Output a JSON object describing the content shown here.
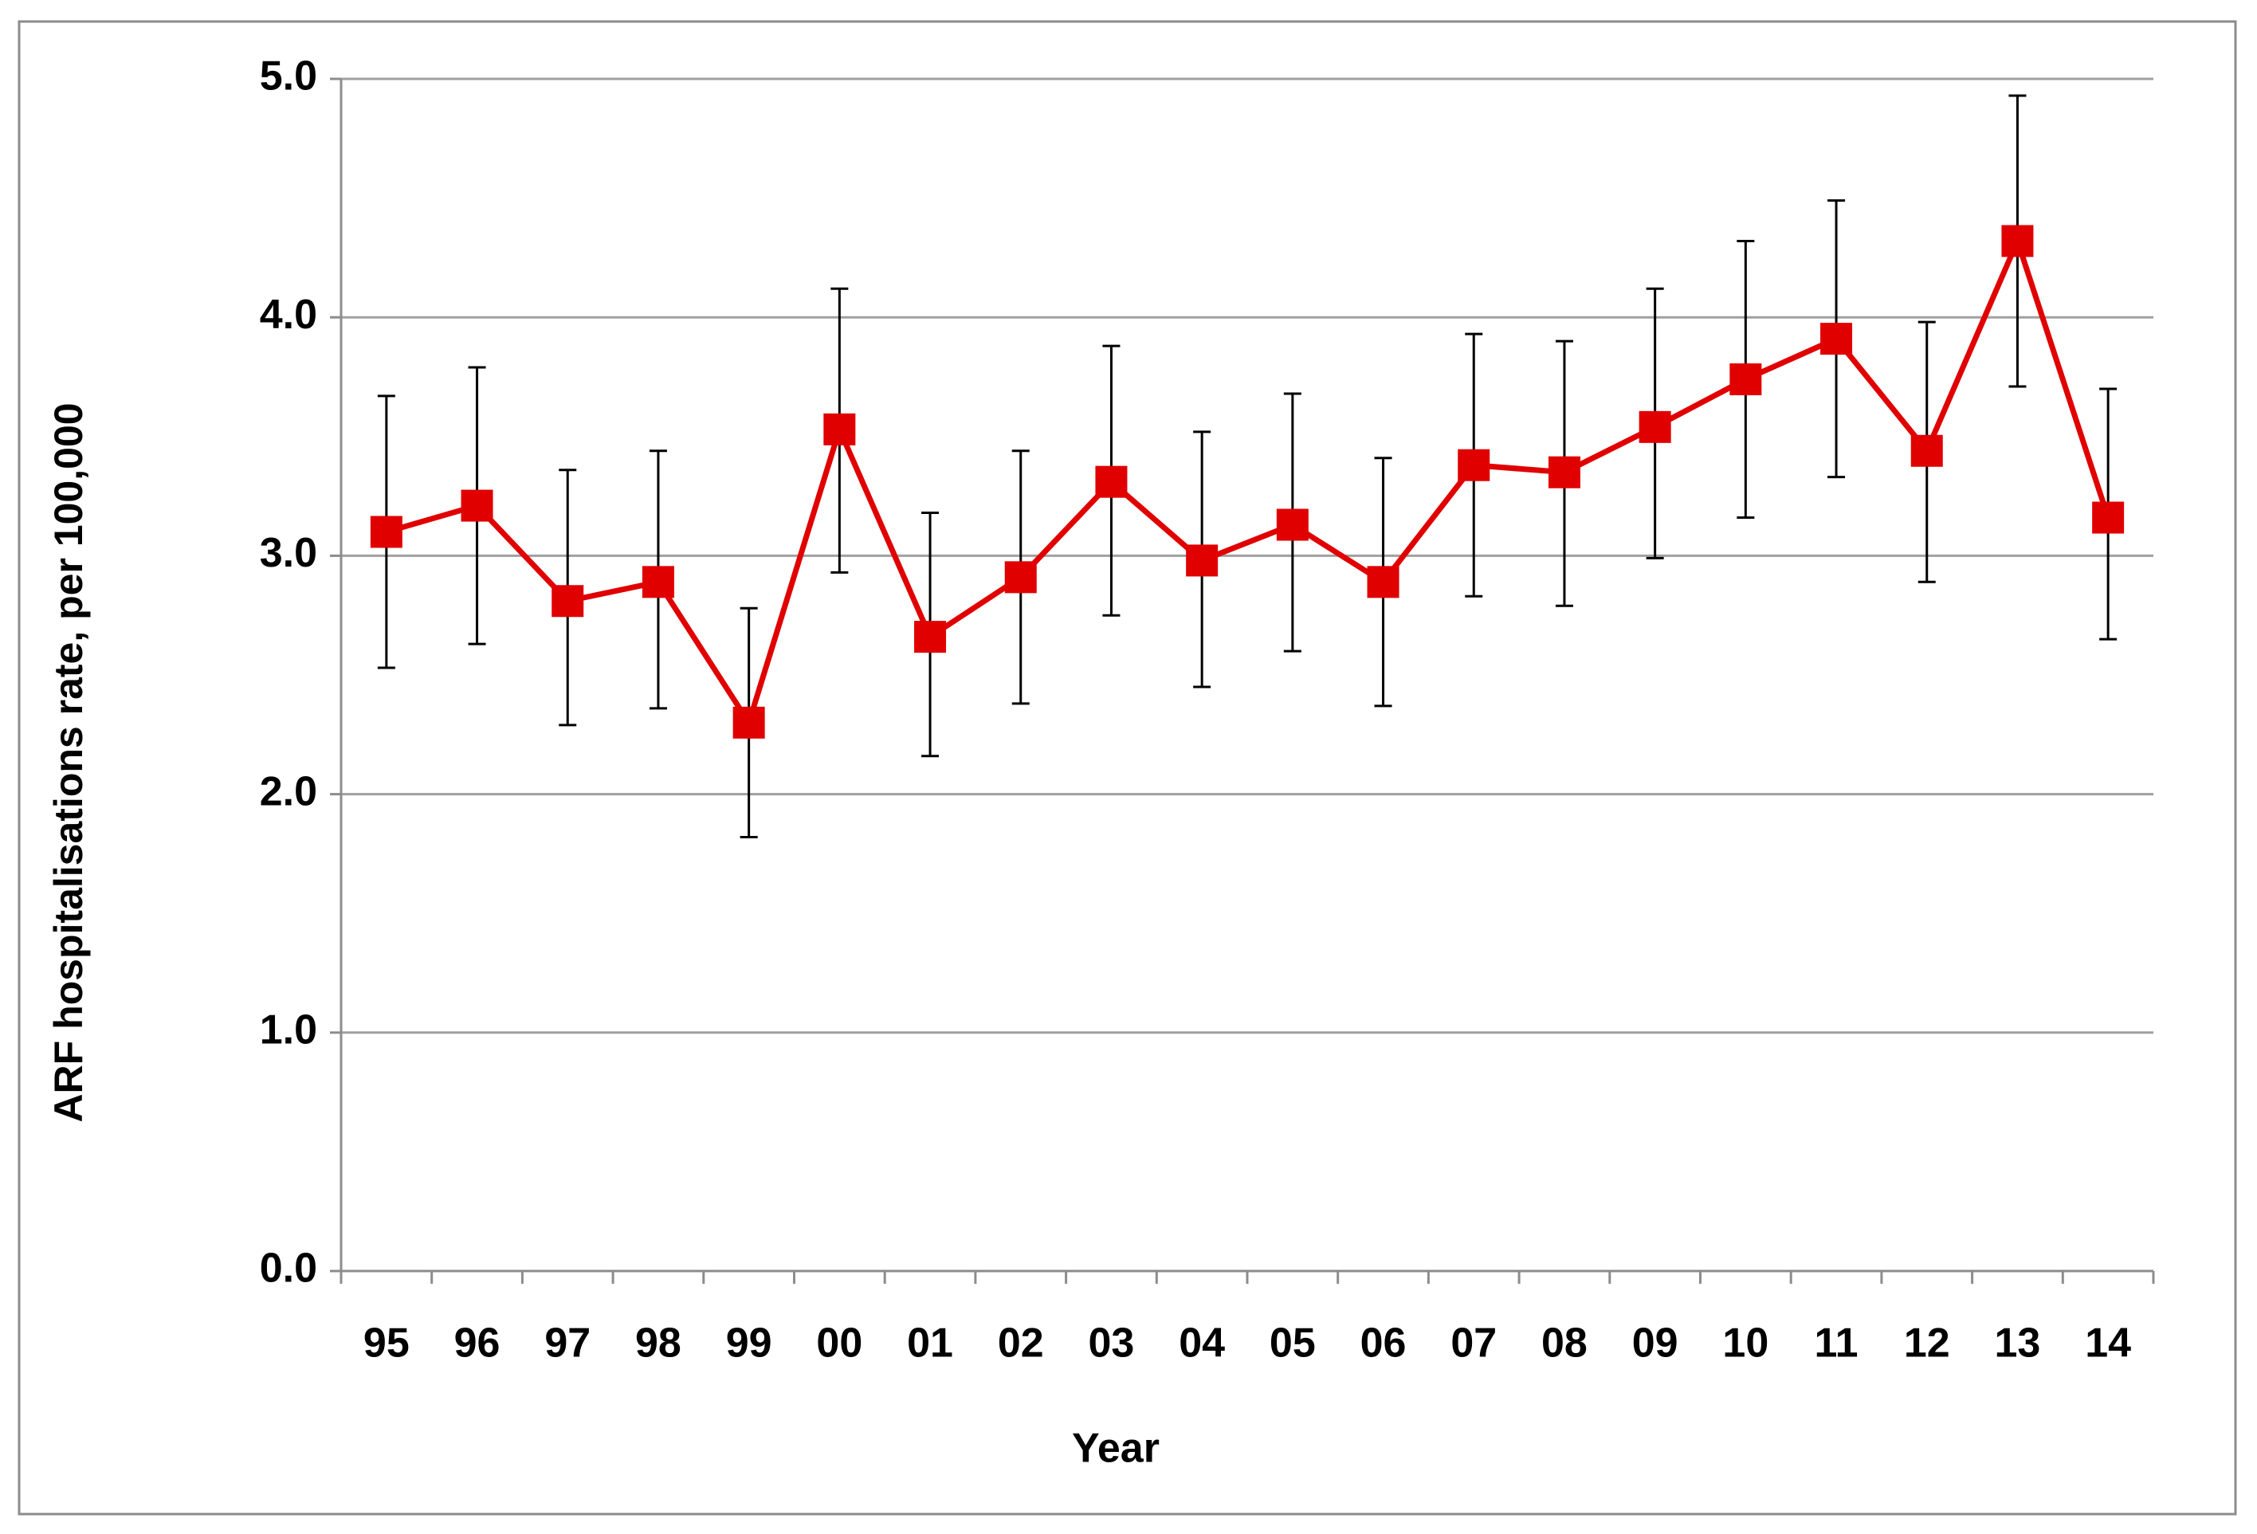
{
  "chart_data": {
    "type": "line",
    "x_label": "Year",
    "y_label": "ARF hospitalisations rate, per 100,000",
    "categories": [
      "95",
      "96",
      "97",
      "98",
      "99",
      "00",
      "01",
      "02",
      "03",
      "04",
      "05",
      "06",
      "07",
      "08",
      "09",
      "10",
      "11",
      "12",
      "13",
      "14"
    ],
    "values": [
      3.1,
      3.21,
      2.81,
      2.89,
      2.3,
      3.53,
      2.66,
      2.91,
      3.31,
      2.98,
      3.13,
      2.89,
      3.38,
      3.35,
      3.54,
      3.74,
      3.91,
      3.44,
      4.32,
      3.16
    ],
    "error_lower": [
      2.53,
      2.63,
      2.29,
      2.36,
      1.82,
      2.93,
      2.16,
      2.38,
      2.75,
      2.45,
      2.6,
      2.37,
      2.83,
      2.79,
      2.99,
      3.16,
      3.33,
      2.89,
      3.71,
      2.65
    ],
    "error_upper": [
      3.67,
      3.79,
      3.36,
      3.44,
      2.78,
      4.12,
      3.18,
      3.44,
      3.88,
      3.52,
      3.68,
      3.41,
      3.93,
      3.9,
      4.12,
      4.32,
      4.49,
      3.98,
      4.93,
      3.7
    ],
    "color": "#e00000",
    "ylim": [
      0,
      5
    ],
    "yticks": [
      {
        "value": 0,
        "label": "0.0"
      },
      {
        "value": 1,
        "label": "1.0"
      },
      {
        "value": 2,
        "label": "2.0"
      },
      {
        "value": 3,
        "label": "3.0"
      },
      {
        "value": 4,
        "label": "4.0"
      },
      {
        "value": 5,
        "label": "5.0"
      }
    ],
    "grid": true
  }
}
